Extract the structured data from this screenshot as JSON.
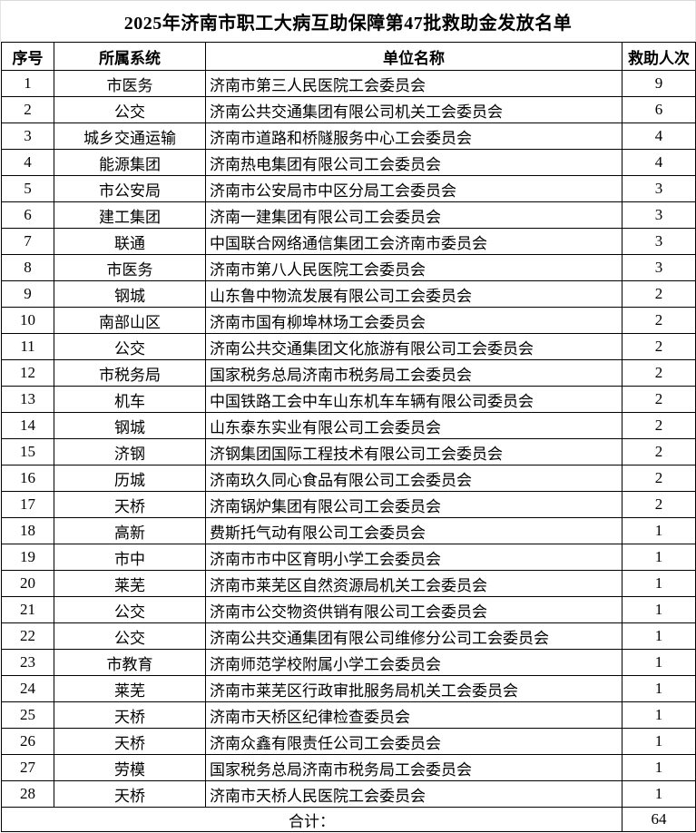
{
  "page": {
    "title": "2025年济南市职工大病互助保障第47批救助金发放名单"
  },
  "table": {
    "headers": [
      "序号",
      "所属系统",
      "单位名称",
      "救助人次"
    ],
    "rows": [
      {
        "seq": "1",
        "system": "市医务",
        "unit": "济南市第三人民医院工会委员会",
        "count": "9"
      },
      {
        "seq": "2",
        "system": "公交",
        "unit": "济南公共交通集团有限公司机关工会委员会",
        "count": "6"
      },
      {
        "seq": "3",
        "system": "城乡交通运输",
        "unit": "济南市道路和桥隧服务中心工会委员会",
        "count": "4"
      },
      {
        "seq": "4",
        "system": "能源集团",
        "unit": "济南热电集团有限公司工会委员会",
        "count": "4"
      },
      {
        "seq": "5",
        "system": "市公安局",
        "unit": "济南市公安局市中区分局工会委员会",
        "count": "3"
      },
      {
        "seq": "6",
        "system": "建工集团",
        "unit": "济南一建集团有限公司工会委员会",
        "count": "3"
      },
      {
        "seq": "7",
        "system": "联通",
        "unit": "中国联合网络通信集团工会济南市委员会",
        "count": "3"
      },
      {
        "seq": "8",
        "system": "市医务",
        "unit": "济南市第八人民医院工会委员会",
        "count": "3"
      },
      {
        "seq": "9",
        "system": "钢城",
        "unit": "山东鲁中物流发展有限公司工会委员会",
        "count": "2"
      },
      {
        "seq": "10",
        "system": "南部山区",
        "unit": "济南市国有柳埠林场工会委员会",
        "count": "2"
      },
      {
        "seq": "11",
        "system": "公交",
        "unit": "济南公共交通集团文化旅游有限公司工会委员会",
        "count": "2"
      },
      {
        "seq": "12",
        "system": "市税务局",
        "unit": "国家税务总局济南市税务局工会委员会",
        "count": "2"
      },
      {
        "seq": "13",
        "system": "机车",
        "unit": "中国铁路工会中车山东机车车辆有限公司委员会",
        "count": "2"
      },
      {
        "seq": "14",
        "system": "钢城",
        "unit": "山东泰东实业有限公司工会委员会",
        "count": "2"
      },
      {
        "seq": "15",
        "system": "济钢",
        "unit": "济钢集团国际工程技术有限公司工会委员会",
        "count": "2"
      },
      {
        "seq": "16",
        "system": "历城",
        "unit": "济南玖久同心食品有限公司工会委员会",
        "count": "2"
      },
      {
        "seq": "17",
        "system": "天桥",
        "unit": "济南锅炉集团有限公司工会委员会",
        "count": "2"
      },
      {
        "seq": "18",
        "system": "高新",
        "unit": "费斯托气动有限公司工会委员会",
        "count": "1"
      },
      {
        "seq": "19",
        "system": "市中",
        "unit": "济南市市中区育明小学工会委员会",
        "count": "1"
      },
      {
        "seq": "20",
        "system": "莱芜",
        "unit": "济南市莱芜区自然资源局机关工会委员会",
        "count": "1"
      },
      {
        "seq": "21",
        "system": "公交",
        "unit": "济南市公交物资供销有限公司工会委员会",
        "count": "1"
      },
      {
        "seq": "22",
        "system": "公交",
        "unit": "济南公共交通集团有限公司维修分公司工会委员会",
        "count": "1"
      },
      {
        "seq": "23",
        "system": "市教育",
        "unit": "济南师范学校附属小学工会委员会",
        "count": "1"
      },
      {
        "seq": "24",
        "system": "莱芜",
        "unit": "济南市莱芜区行政审批服务局机关工会委员会",
        "count": "1"
      },
      {
        "seq": "25",
        "system": "天桥",
        "unit": "济南市天桥区纪律检查委员会",
        "count": "1"
      },
      {
        "seq": "26",
        "system": "天桥",
        "unit": "济南众鑫有限责任公司工会委员会",
        "count": "1"
      },
      {
        "seq": "27",
        "system": "劳模",
        "unit": "国家税务总局济南市税务局工会委员会",
        "count": "1"
      },
      {
        "seq": "28",
        "system": "天桥",
        "unit": "济南市天桥人民医院工会委员会",
        "count": "1"
      }
    ],
    "total_label": "合计：",
    "total_value": "64"
  },
  "colors": {
    "border": "#000000",
    "text": "#000000",
    "background": "#ffffff",
    "hairline": "#d9d9d9"
  }
}
